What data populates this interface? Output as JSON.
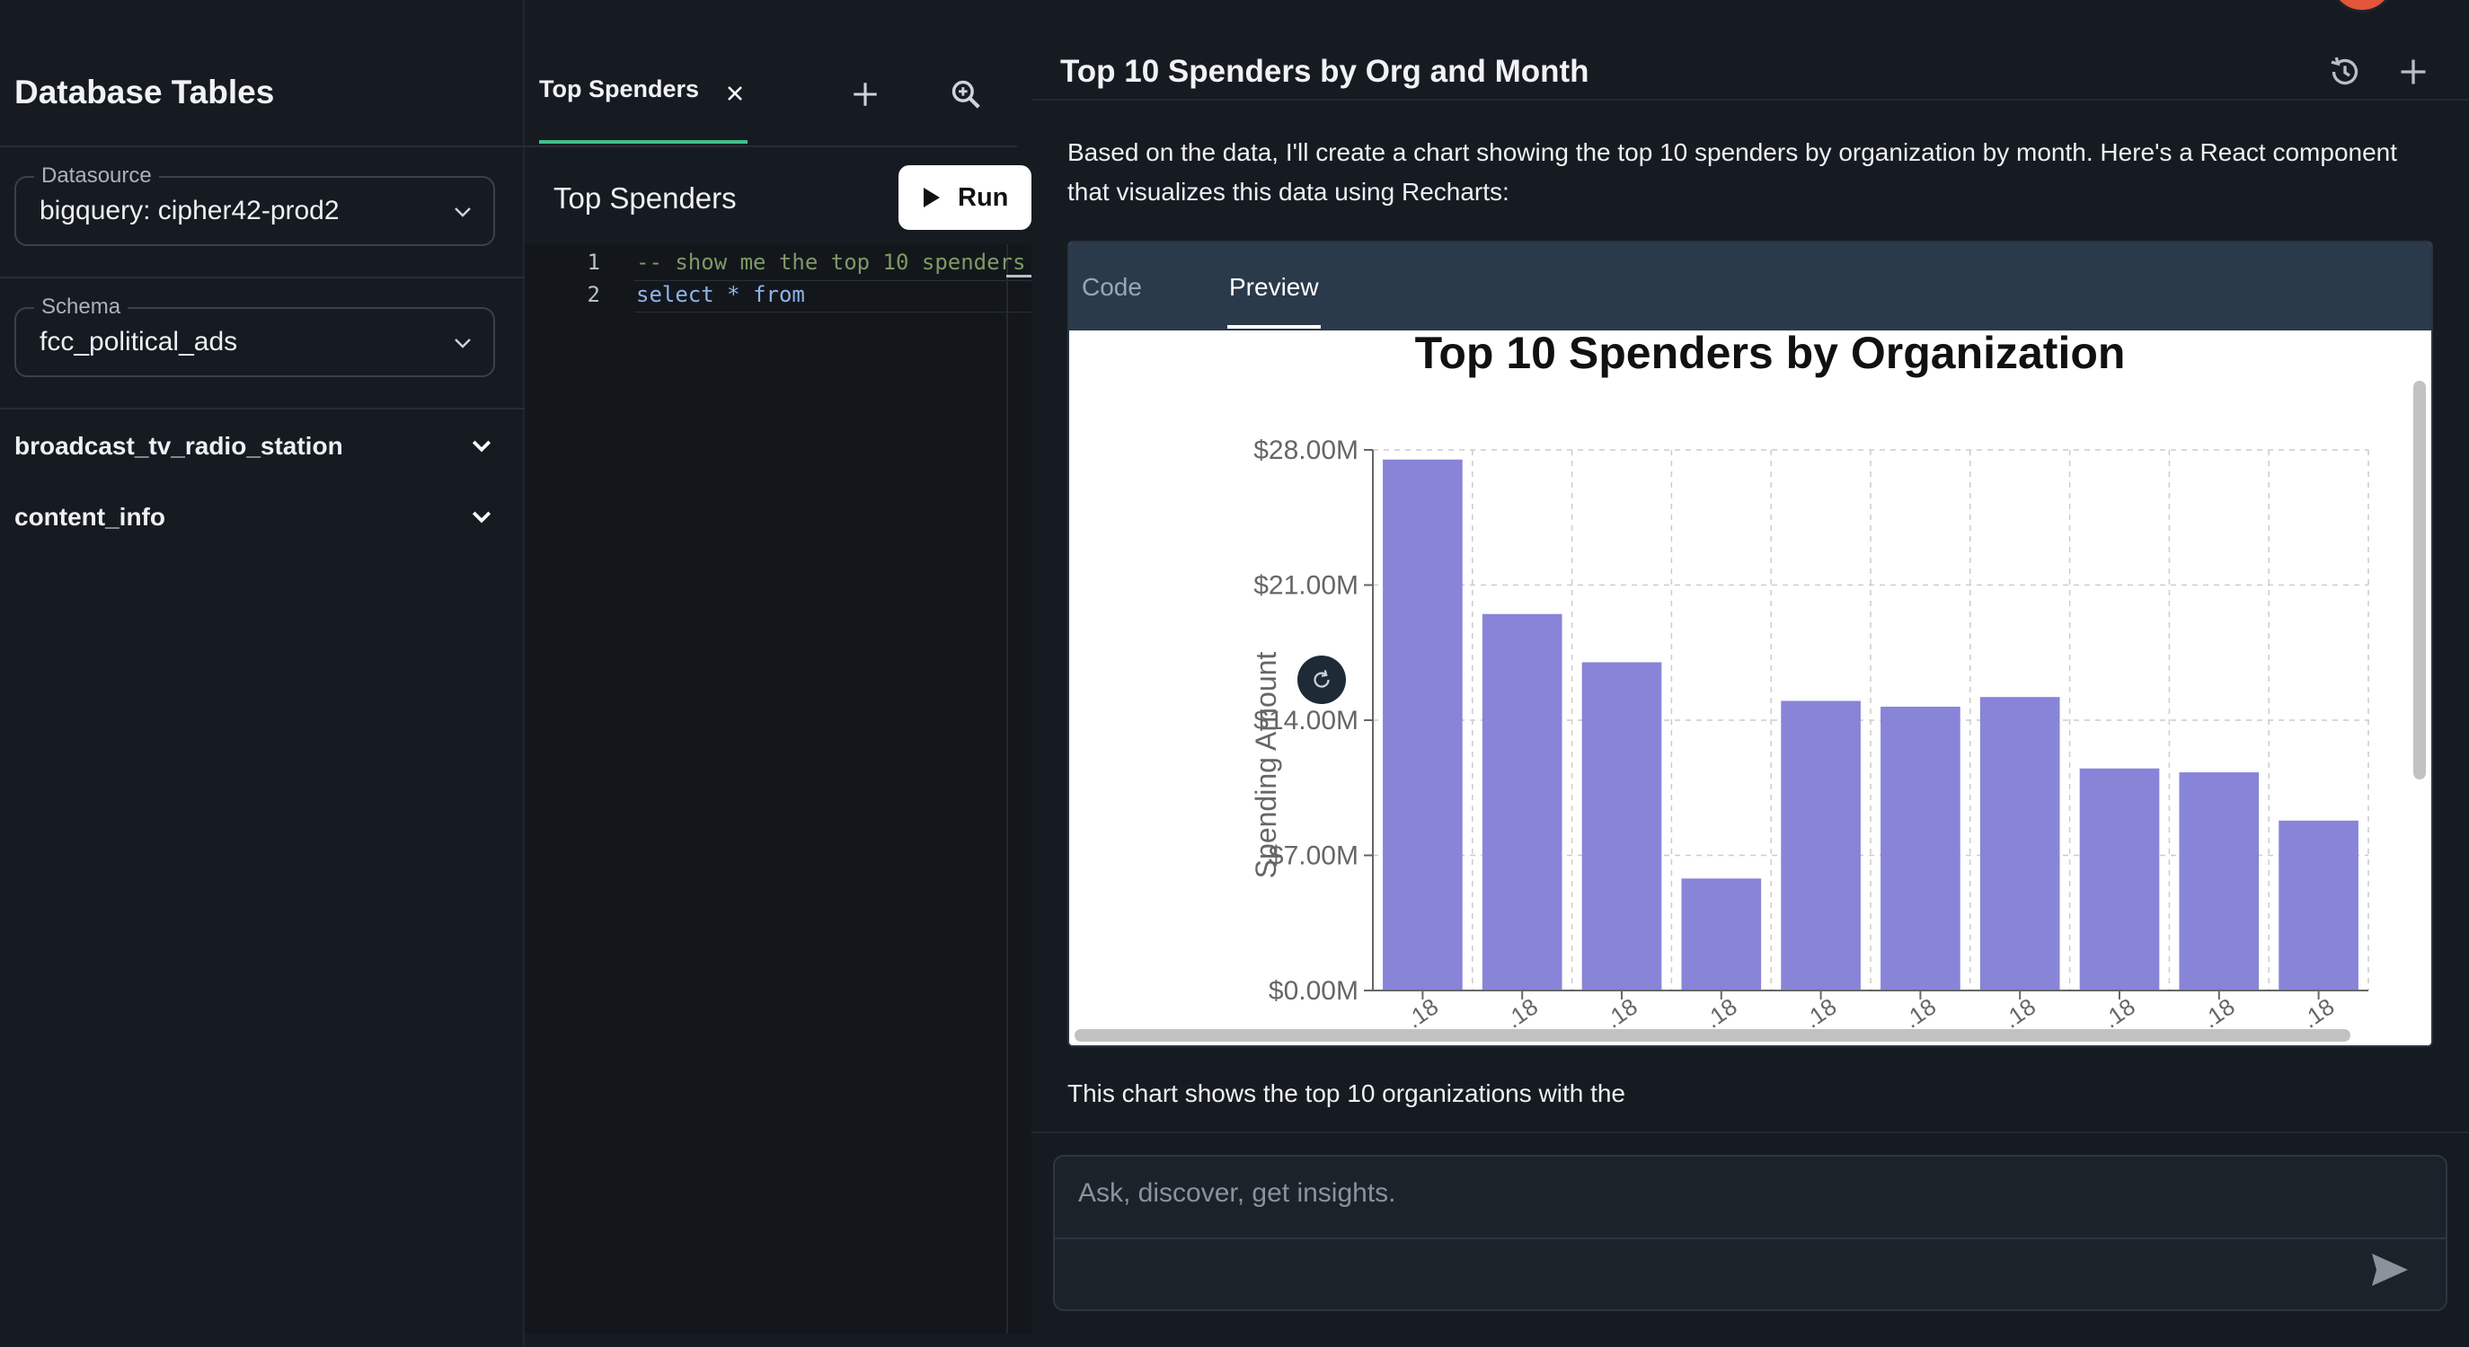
{
  "sidebar": {
    "title": "Database Tables",
    "datasource": {
      "label": "Datasource",
      "value": "bigquery: cipher42-prod2"
    },
    "schema": {
      "label": "Schema",
      "value": "fcc_political_ads"
    },
    "tables": [
      {
        "name": "broadcast_tv_radio_station"
      },
      {
        "name": "content_info"
      }
    ]
  },
  "editor": {
    "tab_label": "Top Spenders",
    "query_title": "Top Spenders",
    "run_label": "Run",
    "lines": [
      {
        "number": "1",
        "text": "--  show me the top 10 spenders"
      },
      {
        "number": "2",
        "keyword": "select",
        "op": " * ",
        "keyword2": "from"
      }
    ]
  },
  "chat": {
    "title": "Top 10 Spenders by Org and Month",
    "message": "Based on the data, I'll create a chart showing the top 10 spenders by organization by month. Here's a React component that visualizes this data using Recharts:",
    "artifact_tabs": {
      "code": "Code",
      "preview": "Preview"
    },
    "after_message": "This chart shows the top 10 organizations with the",
    "composer_placeholder": "Ask, discover, get insights."
  },
  "colors": {
    "accent_green": "#3fbf8a",
    "bar_fill": "#8884d8",
    "avatar": "#e4553a"
  },
  "icons": {
    "close": "close-icon",
    "add": "plus-icon",
    "zoom": "zoom-search-icon",
    "run": "play-icon",
    "history": "history-icon",
    "send": "send-icon",
    "refresh": "refresh-icon",
    "chevron": "chevron-down-icon"
  },
  "chart_data": {
    "type": "bar",
    "title": "Top 10 Spenders by Organization",
    "ylabel": "Spending Amount",
    "xlabel": "",
    "ylim": [
      0,
      28000000
    ],
    "yticks": [
      "$0.00M",
      "$7.00M",
      "$14.00M",
      "$21.00M",
      "$28.00M"
    ],
    "categories": [
      "",
      "",
      "",
      "",
      "",
      "",
      "",
      "",
      "",
      ""
    ],
    "x_tick_labels": [
      ".18",
      ".18",
      ".18",
      ".18",
      ".18",
      ".18",
      ".18",
      ".18",
      ".18",
      ".18"
    ],
    "values": [
      27500000,
      19500000,
      17000000,
      5800000,
      15000000,
      14700000,
      15200000,
      11500000,
      11300000,
      8800000
    ],
    "grid": true,
    "bar_color": "#8884d8"
  }
}
